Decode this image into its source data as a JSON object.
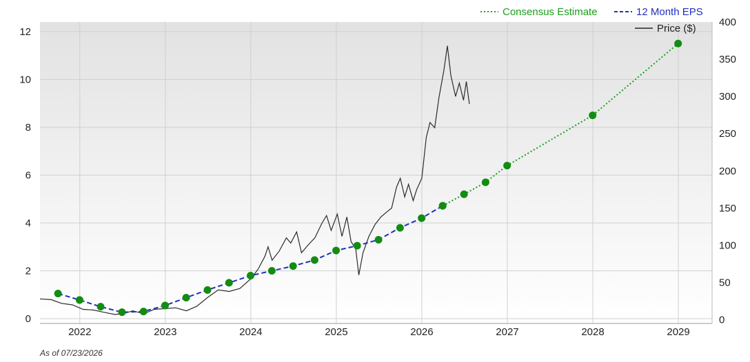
{
  "chart_data": {
    "type": "line",
    "as_of": "As of 07/23/2026",
    "x_ticks": [
      "2022",
      "2023",
      "2024",
      "2025",
      "2026",
      "2027",
      "2028",
      "2029"
    ],
    "y_left_ticks": [
      "0",
      "2",
      "4",
      "6",
      "8",
      "10",
      "12"
    ],
    "y_right_ticks": [
      "0",
      "50",
      "100",
      "150",
      "200",
      "250",
      "300",
      "350",
      "400"
    ],
    "y_left_lim": [
      -0.2,
      12.4
    ],
    "y_right_lim": [
      -5,
      400
    ],
    "x_lim": [
      "2021-07-15",
      "2029-05-25"
    ],
    "legend_position": "top-right",
    "grid": true,
    "series": [
      {
        "name": "Consensus Estimate",
        "axis": "left",
        "style": "dotted",
        "color": "#1a9e1a",
        "points": [
          [
            "2026-03-31",
            4.72
          ],
          [
            "2026-06-30",
            5.2
          ],
          [
            "2026-09-30",
            5.7
          ],
          [
            "2026-12-31",
            6.4
          ],
          [
            "2027-12-31",
            8.5
          ],
          [
            "2028-12-31",
            11.5
          ]
        ]
      },
      {
        "name": "12 Month EPS",
        "axis": "left",
        "style": "dashed",
        "color": "#1f2fbf",
        "points": [
          [
            "2021-09-30",
            1.05
          ],
          [
            "2021-12-31",
            0.78
          ],
          [
            "2022-03-31",
            0.5
          ],
          [
            "2022-06-30",
            0.27
          ],
          [
            "2022-09-30",
            0.3
          ],
          [
            "2022-12-31",
            0.55
          ],
          [
            "2023-03-31",
            0.88
          ],
          [
            "2023-06-30",
            1.2
          ],
          [
            "2023-09-30",
            1.5
          ],
          [
            "2023-12-31",
            1.8
          ],
          [
            "2024-03-31",
            2.0
          ],
          [
            "2024-06-30",
            2.2
          ],
          [
            "2024-09-30",
            2.45
          ],
          [
            "2024-12-31",
            2.85
          ],
          [
            "2025-03-31",
            3.05
          ],
          [
            "2025-06-30",
            3.3
          ],
          [
            "2025-09-30",
            3.8
          ],
          [
            "2025-12-31",
            4.2
          ],
          [
            "2026-03-31",
            4.72
          ]
        ]
      },
      {
        "name": "Price ($)",
        "axis": "right",
        "style": "solid",
        "color": "#2a2a2a",
        "points": [
          [
            "2021-07-15",
            28
          ],
          [
            "2021-09-01",
            27
          ],
          [
            "2021-10-15",
            22
          ],
          [
            "2021-12-01",
            20
          ],
          [
            "2022-01-15",
            14
          ],
          [
            "2022-03-01",
            13
          ],
          [
            "2022-04-15",
            10
          ],
          [
            "2022-06-01",
            7
          ],
          [
            "2022-07-15",
            9
          ],
          [
            "2022-08-15",
            12
          ],
          [
            "2022-10-01",
            8
          ],
          [
            "2022-11-15",
            14
          ],
          [
            "2023-01-01",
            15
          ],
          [
            "2023-02-15",
            16
          ],
          [
            "2023-04-01",
            12
          ],
          [
            "2023-05-15",
            18
          ],
          [
            "2023-07-01",
            30
          ],
          [
            "2023-08-15",
            40
          ],
          [
            "2023-10-01",
            38
          ],
          [
            "2023-11-15",
            42
          ],
          [
            "2024-01-01",
            55
          ],
          [
            "2024-02-01",
            68
          ],
          [
            "2024-03-01",
            85
          ],
          [
            "2024-03-15",
            98
          ],
          [
            "2024-04-01",
            80
          ],
          [
            "2024-05-01",
            92
          ],
          [
            "2024-06-01",
            110
          ],
          [
            "2024-06-20",
            103
          ],
          [
            "2024-07-15",
            118
          ],
          [
            "2024-08-05",
            90
          ],
          [
            "2024-09-01",
            100
          ],
          [
            "2024-10-01",
            110
          ],
          [
            "2024-11-01",
            130
          ],
          [
            "2024-11-20",
            140
          ],
          [
            "2024-12-10",
            120
          ],
          [
            "2025-01-05",
            142
          ],
          [
            "2025-01-25",
            112
          ],
          [
            "2025-02-15",
            138
          ],
          [
            "2025-03-05",
            105
          ],
          [
            "2025-03-25",
            95
          ],
          [
            "2025-04-07",
            60
          ],
          [
            "2025-04-25",
            90
          ],
          [
            "2025-05-20",
            112
          ],
          [
            "2025-06-15",
            128
          ],
          [
            "2025-07-10",
            138
          ],
          [
            "2025-08-05",
            145
          ],
          [
            "2025-08-25",
            150
          ],
          [
            "2025-09-15",
            178
          ],
          [
            "2025-10-01",
            190
          ],
          [
            "2025-10-20",
            165
          ],
          [
            "2025-11-05",
            182
          ],
          [
            "2025-11-25",
            160
          ],
          [
            "2025-12-10",
            175
          ],
          [
            "2026-01-01",
            190
          ],
          [
            "2026-01-20",
            245
          ],
          [
            "2026-02-05",
            265
          ],
          [
            "2026-02-25",
            258
          ],
          [
            "2026-03-15",
            298
          ],
          [
            "2026-04-05",
            335
          ],
          [
            "2026-04-20",
            368
          ],
          [
            "2026-05-05",
            328
          ],
          [
            "2026-05-25",
            300
          ],
          [
            "2026-06-10",
            318
          ],
          [
            "2026-06-28",
            295
          ],
          [
            "2026-07-10",
            320
          ],
          [
            "2026-07-23",
            290
          ]
        ]
      }
    ]
  }
}
